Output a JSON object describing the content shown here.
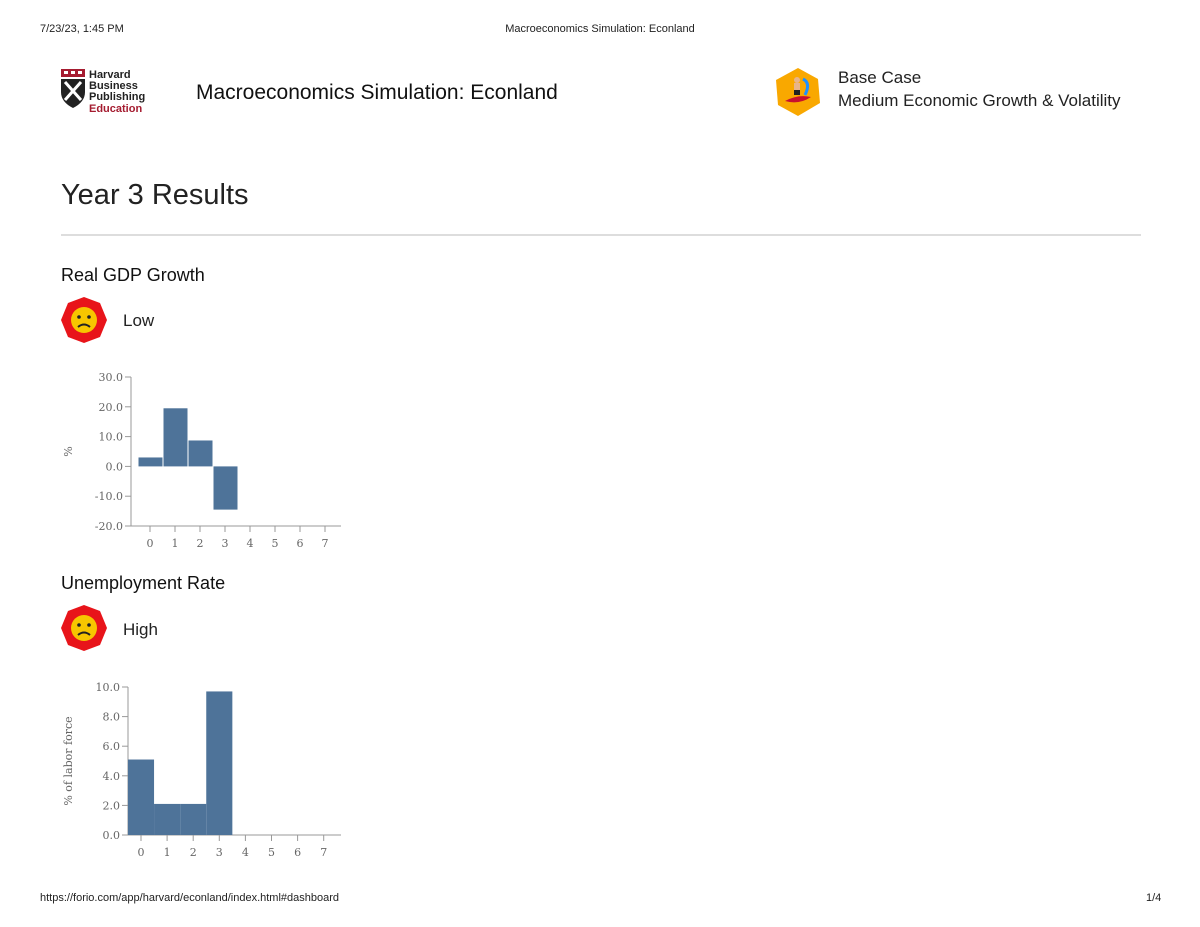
{
  "print_header": {
    "datetime": "7/23/23, 1:45 PM",
    "page_title": "Macroeconomics Simulation: Econland"
  },
  "print_footer": {
    "url": "https://forio.com/app/harvard/econland/index.html#dashboard",
    "page": "1/4"
  },
  "header": {
    "logo_text": [
      "Harvard",
      "Business",
      "Publishing",
      "Education"
    ],
    "title": "Macroeconomics Simulation: Econland",
    "scenario_icon": "surfer-badge-icon",
    "scenario_name": "Base Case",
    "scenario_desc": "Medium Economic Growth & Volatility"
  },
  "page_heading": "Year 3 Results",
  "colors": {
    "bar": "#4e7399",
    "badge_red": "#e8141a",
    "face": "#f7c600",
    "badge_orange": "#f9a800"
  },
  "sections": [
    {
      "title": "Real GDP Growth",
      "rating": "Low",
      "rating_icon": "sad-face-icon"
    },
    {
      "title": "Unemployment Rate",
      "rating": "High",
      "rating_icon": "sad-face-icon"
    }
  ],
  "chart_data": [
    {
      "type": "bar",
      "categories": [
        "0",
        "1",
        "2",
        "3",
        "4",
        "5",
        "6",
        "7"
      ],
      "values": [
        3.0,
        19.5,
        8.7,
        -14.5,
        null,
        null,
        null,
        null
      ],
      "ylabel": "%",
      "ylim": [
        -20,
        30
      ],
      "yticks": [
        "30.0",
        "20.0",
        "10.0",
        "0.0",
        "-10.0",
        "-20.0"
      ],
      "grid": false
    },
    {
      "type": "bar",
      "categories": [
        "0",
        "1",
        "2",
        "3",
        "4",
        "5",
        "6",
        "7"
      ],
      "values": [
        5.1,
        2.1,
        2.1,
        9.7,
        null,
        null,
        null,
        null
      ],
      "ylabel": "% of labor force",
      "ylim": [
        0,
        10
      ],
      "yticks": [
        "10.0",
        "8.0",
        "6.0",
        "4.0",
        "2.0",
        "0.0"
      ],
      "grid": false
    }
  ]
}
